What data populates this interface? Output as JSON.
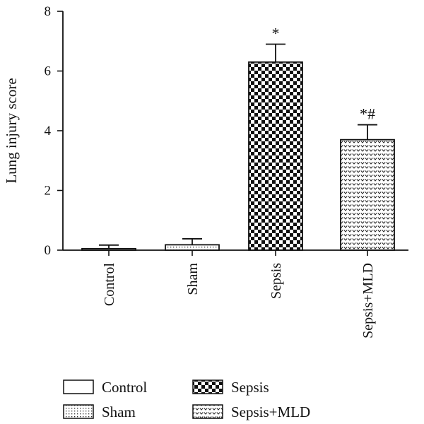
{
  "chart_data": {
    "type": "bar",
    "ylabel": "Lung injury score",
    "xlabel": "",
    "ylim": [
      0,
      8
    ],
    "yticks": [
      0,
      2,
      4,
      6,
      8
    ],
    "categories": [
      "Control",
      "Sham",
      "Sepsis",
      "Sepsis+MLD"
    ],
    "values": [
      0.05,
      0.18,
      6.3,
      3.7
    ],
    "errors": [
      0.12,
      0.2,
      0.6,
      0.5
    ],
    "annotations": [
      "",
      "",
      "*",
      "*#"
    ],
    "patterns": [
      "none",
      "dots",
      "checker",
      "chevron"
    ],
    "legend": {
      "placement": "bottom",
      "entries": [
        "Control",
        "Sham",
        "Sepsis",
        "Sepsis+MLD"
      ]
    },
    "grid": false
  }
}
